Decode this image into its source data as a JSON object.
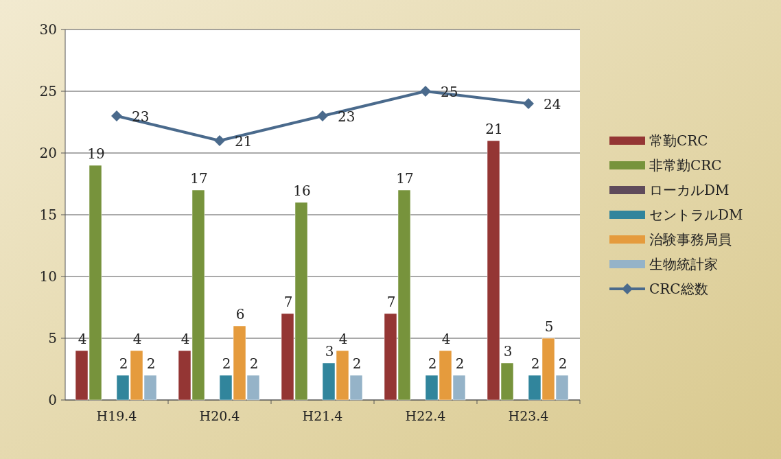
{
  "chart_data": {
    "type": "bar",
    "categories": [
      "H19.4",
      "H20.4",
      "H21.4",
      "H22.4",
      "H23.4"
    ],
    "series": [
      {
        "name": "常勤CRC",
        "color": "#943634",
        "values": [
          4,
          4,
          7,
          7,
          21
        ]
      },
      {
        "name": "非常勤CRC",
        "color": "#77933c",
        "values": [
          19,
          17,
          16,
          17,
          3
        ]
      },
      {
        "name": "ローカルDM",
        "color": "#5f4b5b",
        "values": [
          null,
          null,
          null,
          null,
          null
        ]
      },
      {
        "name": "セントラルDM",
        "color": "#31859c",
        "values": [
          2,
          2,
          3,
          2,
          2
        ]
      },
      {
        "name": "治験事務局員",
        "color": "#e59b3d",
        "values": [
          4,
          6,
          4,
          4,
          5
        ]
      },
      {
        "name": "生物統計家",
        "color": "#95b3c8",
        "values": [
          2,
          2,
          2,
          2,
          2
        ]
      },
      {
        "name": "CRC総数",
        "color": "#4a6a8c",
        "type": "line",
        "marker": "diamond",
        "values": [
          23,
          21,
          23,
          25,
          24
        ]
      }
    ],
    "ylim": [
      0,
      30
    ],
    "yticks": [
      0,
      5,
      10,
      15,
      20,
      25,
      30
    ],
    "grid": "y",
    "legend": "right",
    "data_labels": true
  }
}
